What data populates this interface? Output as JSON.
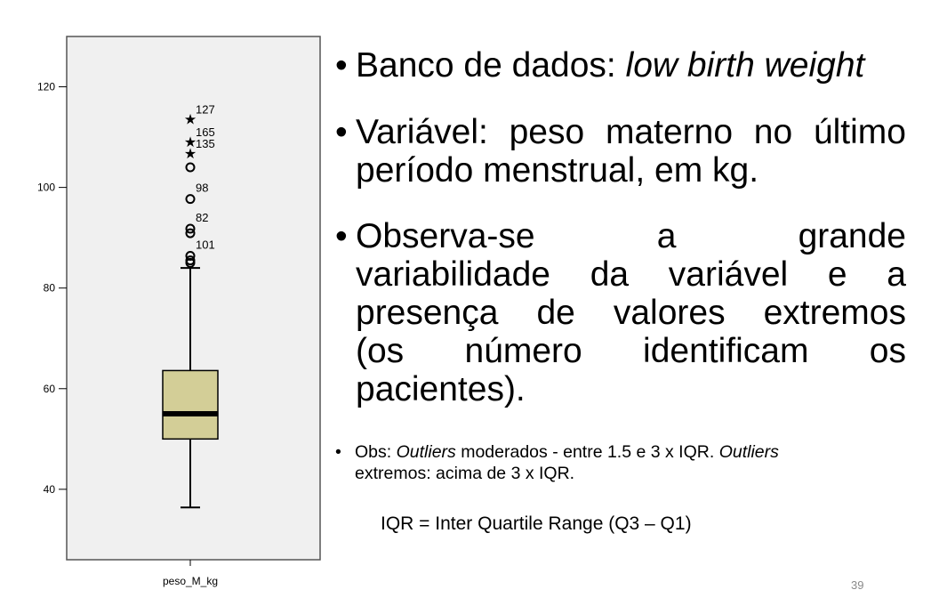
{
  "chart_data": {
    "type": "boxplot",
    "xlabel": "peso_M_kg",
    "ylim": [
      26,
      130
    ],
    "yticks": [
      40,
      60,
      80,
      100,
      120
    ],
    "box": {
      "min": 36.4,
      "q1": 50,
      "median": 55,
      "q3": 63.6,
      "max": 84
    },
    "outliers": [
      {
        "value": 85,
        "label": ""
      },
      {
        "value": 85.5,
        "label": ""
      },
      {
        "value": 86.4,
        "label": "101"
      },
      {
        "value": 90.9,
        "label": ""
      },
      {
        "value": 91.8,
        "label": "82"
      },
      {
        "value": 97.7,
        "label": "98"
      },
      {
        "value": 104,
        "label": ""
      }
    ],
    "extremes": [
      {
        "value": 106.8,
        "label": "135"
      },
      {
        "value": 109.1,
        "label": "165"
      },
      {
        "value": 113.6,
        "label": "127"
      }
    ],
    "colors": {
      "plot_bg": "#f0f0f0",
      "box_fill": "#d3ce97",
      "frame": "#555555"
    }
  },
  "slide": {
    "b1_prefix": "Banco de dados: ",
    "b1_italic": "low birth weight",
    "b2_row1": [
      "Variável:",
      "peso",
      "materno",
      "no",
      "último"
    ],
    "b2_last": "período menstrual, em kg.",
    "b3_row1": [
      "Observa-se",
      "a",
      "grande"
    ],
    "b3_row2": [
      "variabilidade",
      "da",
      "variável",
      "e",
      "a"
    ],
    "b3_row3": [
      "presença",
      "de",
      "valores",
      "extremos"
    ],
    "b3_row4": [
      "(os",
      "número",
      "identificam",
      "os"
    ],
    "b3_last": "pacientes).",
    "obs_label": "Obs: ",
    "obs_italic1": "Outliers",
    "obs_mid": " moderados - entre 1.5 e 3 x IQR. ",
    "obs_italic2": "Outliers",
    "obs_line2": "extremos: acima de 3 x IQR.",
    "iqr": "IQR = Inter Quartile Range (Q3 – Q1)",
    "page": "39",
    "bullet": "•"
  }
}
